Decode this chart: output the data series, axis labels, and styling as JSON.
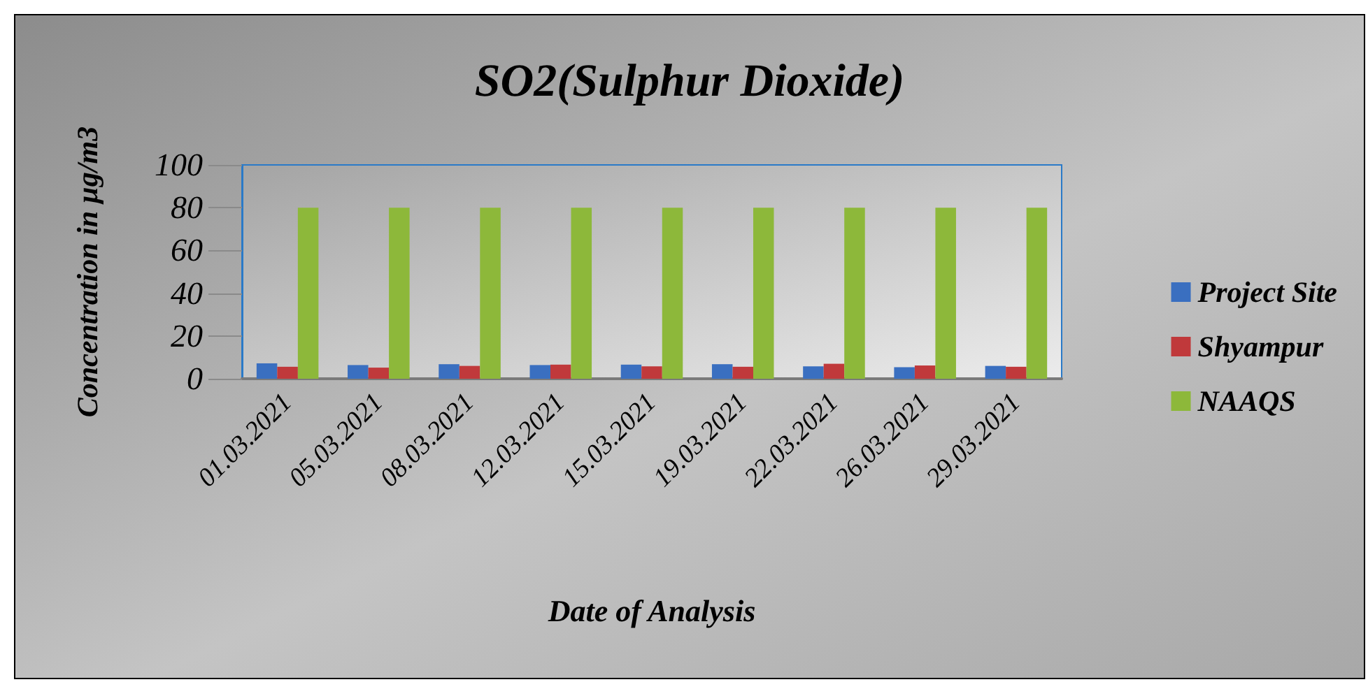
{
  "chart_data": {
    "type": "bar",
    "title": "SO2(Sulphur Dioxide)",
    "xlabel": "Date of Analysis",
    "ylabel": "Concentration in µg/m3",
    "categories": [
      "01.03.2021",
      "05.03.2021",
      "08.03.2021",
      "12.03.2021",
      "15.03.2021",
      "19.03.2021",
      "22.03.2021",
      "26.03.2021",
      "29.03.2021"
    ],
    "series": [
      {
        "name": "Project Site",
        "color": "#3a6fc0",
        "values": [
          7.2,
          6.4,
          6.8,
          6.4,
          6.6,
          6.8,
          5.8,
          5.4,
          6.0
        ]
      },
      {
        "name": "Shyampur",
        "color": "#c0393b",
        "values": [
          5.6,
          5.2,
          6.0,
          6.6,
          5.8,
          5.6,
          7.0,
          6.2,
          5.6
        ]
      },
      {
        "name": "NAAQS",
        "color": "#8db83a",
        "values": [
          80,
          80,
          80,
          80,
          80,
          80,
          80,
          80,
          80
        ]
      }
    ],
    "ylim": [
      0,
      100
    ],
    "yticks": [
      0,
      20,
      40,
      60,
      80,
      100
    ],
    "grid": false,
    "legend": "right"
  }
}
